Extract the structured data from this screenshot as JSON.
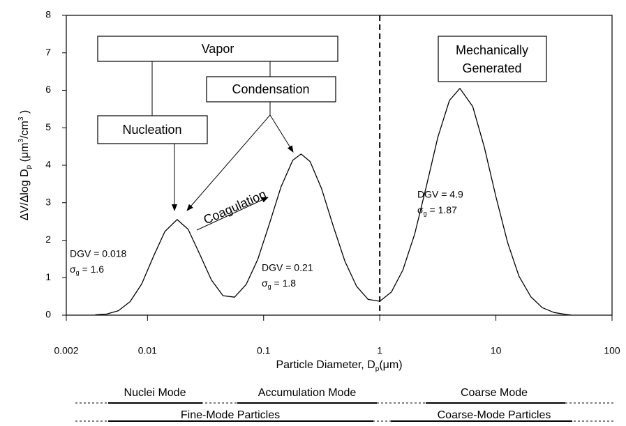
{
  "chart_data": {
    "type": "line",
    "xlabel_parts": [
      {
        "text": "Particle Diameter, D"
      },
      {
        "text": "p",
        "sub": true
      },
      {
        "text": "(μm)"
      }
    ],
    "ylabel_parts": [
      {
        "text": "ΔV/Δlog D"
      },
      {
        "text": "p",
        "sub": true
      },
      {
        "text": " (μm"
      },
      {
        "text": "3",
        "sup": true
      },
      {
        "text": "/cm"
      },
      {
        "text": "3",
        "sup": true
      },
      {
        "text": " )"
      }
    ],
    "x": [
      0.00355,
      0.00447,
      0.00562,
      0.00708,
      0.00891,
      0.0112,
      0.0141,
      0.018,
      0.0224,
      0.0282,
      0.0355,
      0.0447,
      0.0562,
      0.0708,
      0.0891,
      0.112,
      0.141,
      0.178,
      0.21,
      0.251,
      0.316,
      0.398,
      0.501,
      0.631,
      0.794,
      1,
      1.26,
      1.58,
      2.0,
      2.51,
      3.16,
      3.98,
      4.9,
      6.31,
      7.94,
      10,
      12.6,
      15.8,
      20,
      25.1,
      31.6,
      39.8,
      44.7
    ],
    "series": [
      {
        "color": "#000000",
        "values": [
          0.01,
          0.03,
          0.12,
          0.36,
          0.83,
          1.55,
          2.23,
          2.55,
          2.29,
          1.62,
          0.94,
          0.52,
          0.48,
          0.82,
          1.49,
          2.43,
          3.42,
          4.13,
          4.3,
          4.1,
          3.37,
          2.37,
          1.44,
          0.77,
          0.42,
          0.37,
          0.62,
          1.2,
          2.17,
          3.42,
          4.74,
          5.73,
          6.05,
          5.57,
          4.49,
          3.16,
          1.94,
          1.04,
          0.49,
          0.2,
          0.07,
          0.02,
          0
        ]
      }
    ],
    "xlim": [
      0.002,
      100
    ],
    "xticks": [
      0.002,
      0.01,
      0.1,
      1,
      10,
      100
    ],
    "xscale": "log",
    "ylim": [
      0,
      8
    ],
    "yticks": [
      0,
      1,
      2,
      3,
      4,
      5,
      6,
      7,
      8
    ],
    "divider_x": 1,
    "sigma_symbol": "σ",
    "sigma_subscript": "g",
    "mode_labels": [
      {
        "dgv": "DGV = 0.018",
        "sigma": " = 1.6"
      },
      {
        "dgv": "DGV = 0.21",
        "sigma": " = 1.8"
      },
      {
        "dgv": "DGV = 4.9",
        "sigma": " = 1.87"
      }
    ],
    "boxes": {
      "vapor": "Vapor",
      "condensation": "Condensation",
      "nucleation": "Nucleation",
      "mech1": "Mechanically",
      "mech2": "Generated"
    },
    "coagulation": "Coagulation",
    "modes": [
      "Nuclei Mode",
      "Accumulation Mode",
      "Coarse Mode"
    ],
    "particles": [
      "Fine-Mode Particles",
      "Coarse-Mode Particles"
    ]
  }
}
